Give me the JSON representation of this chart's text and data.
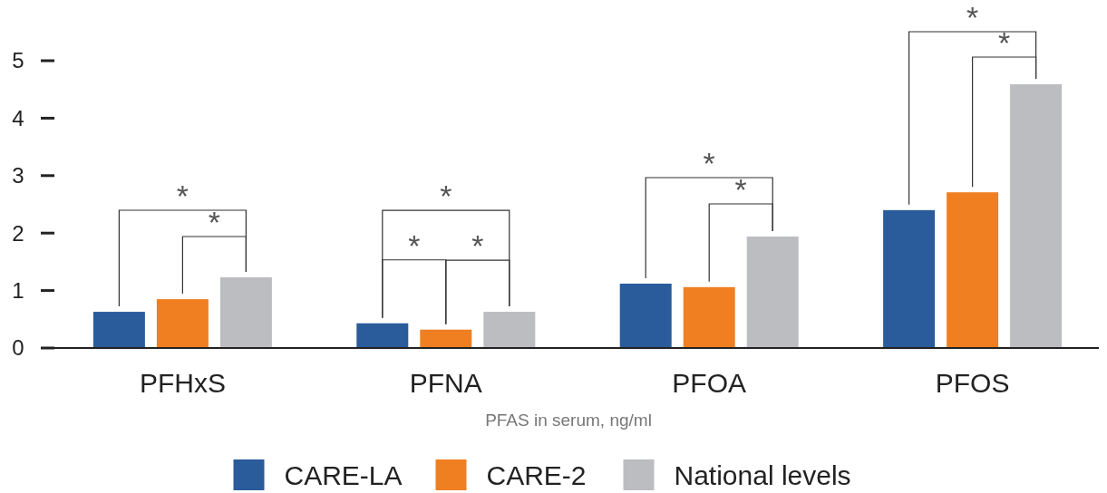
{
  "chart_data": {
    "type": "bar",
    "xlabel": "PFAS in serum, ng/ml",
    "categories": [
      "PFHxS",
      "PFNA",
      "PFOA",
      "PFOS"
    ],
    "series": [
      {
        "name": "CARE-LA",
        "color": "#2a5b9b",
        "values": [
          0.63,
          0.43,
          1.12,
          2.4
        ]
      },
      {
        "name": "CARE-2",
        "color": "#f07f22",
        "values": [
          0.85,
          0.32,
          1.06,
          2.71
        ]
      },
      {
        "name": "National levels",
        "color": "#bcbdc0",
        "values": [
          1.23,
          0.63,
          1.94,
          4.59
        ]
      }
    ],
    "ylim": [
      0,
      5
    ],
    "yticks": [
      0,
      1,
      2,
      3,
      4,
      5
    ],
    "grid": false,
    "legend": "bottom",
    "annotations": [
      "*",
      "*",
      "*",
      "*",
      "*",
      "*",
      "*",
      "*",
      "*"
    ]
  }
}
